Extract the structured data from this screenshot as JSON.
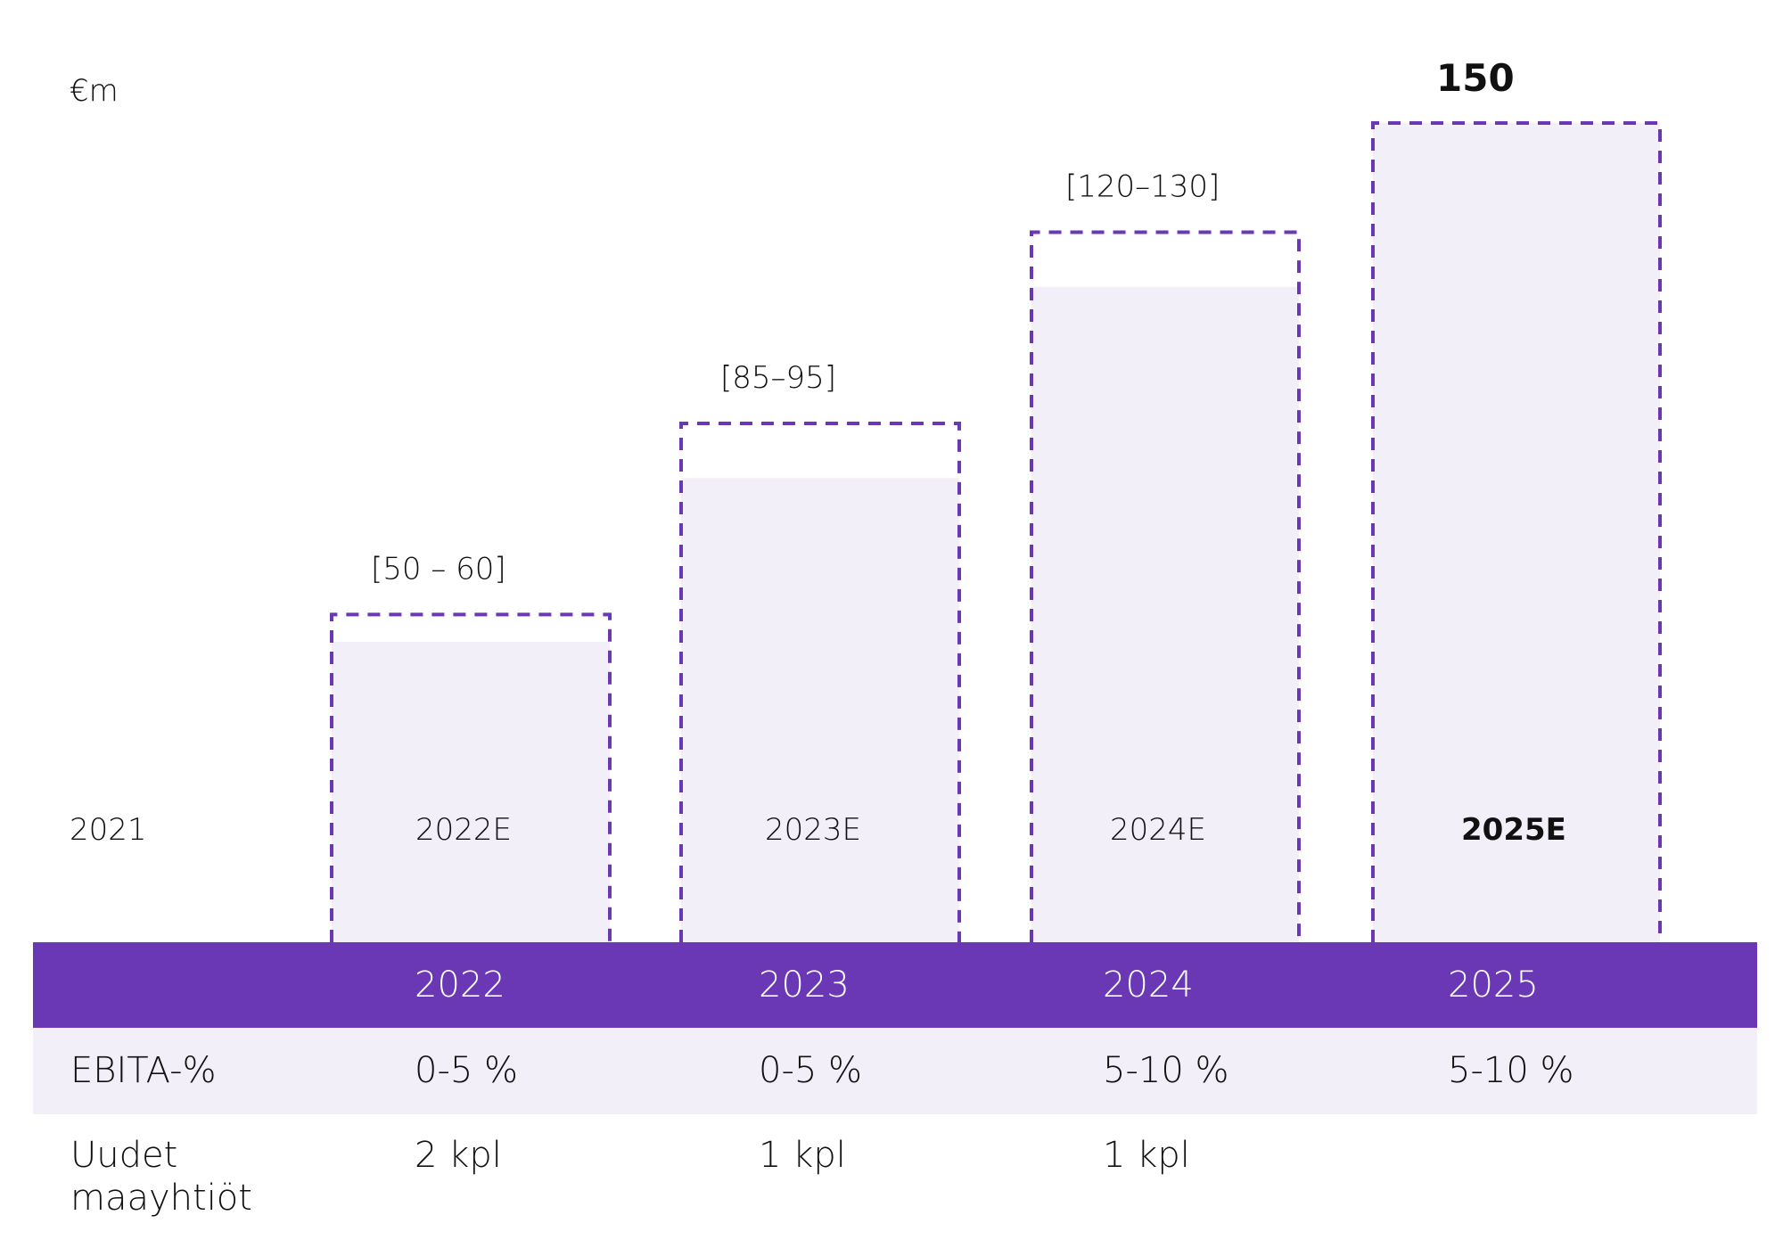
{
  "chart_data": {
    "type": "bar",
    "unit_label": "€m",
    "categories": [
      "2021",
      "2022E",
      "2023E",
      "2024E",
      "2025E"
    ],
    "range_labels": [
      "",
      "[50 – 60]",
      "[85–95]",
      "[120–130]",
      "150"
    ],
    "ranges": [
      null,
      [
        50,
        60
      ],
      [
        85,
        95
      ],
      [
        120,
        130
      ],
      [
        150,
        150
      ]
    ],
    "bar_fill_values": [
      null,
      55,
      85,
      120,
      150
    ],
    "ylim": [
      0,
      150
    ],
    "colors": {
      "accent": "#6a38b5",
      "bar_fill": "#f2eff8"
    }
  },
  "table": {
    "header": {
      "label": "",
      "values": [
        "2022",
        "2023",
        "2024",
        "2025"
      ]
    },
    "rows": [
      {
        "label": "EBITA-%",
        "values": [
          "0-5 %",
          "0-5 %",
          "5-10 %",
          "5-10 %"
        ]
      },
      {
        "label": "Uudet maayhtiöt",
        "values": [
          "2 kpl",
          "1 kpl",
          "1 kpl",
          ""
        ]
      }
    ]
  }
}
